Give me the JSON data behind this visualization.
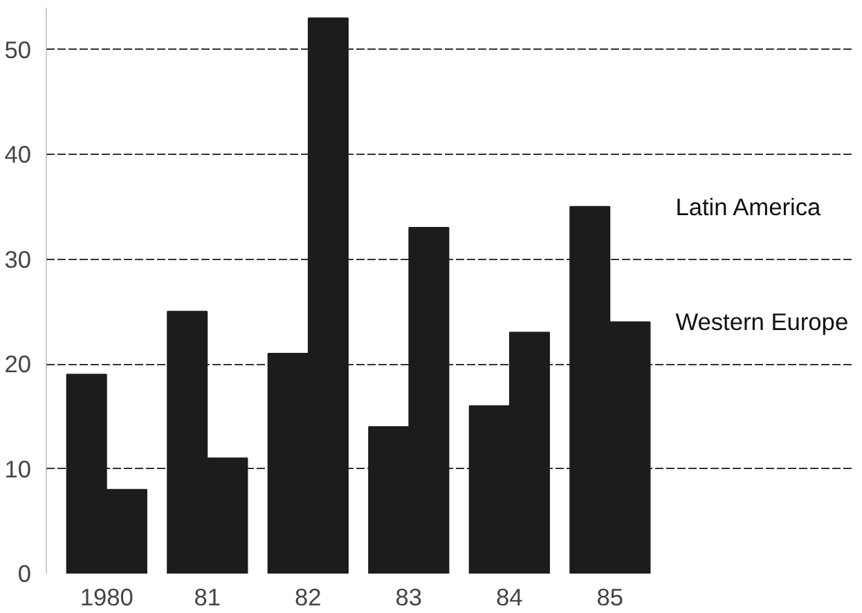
{
  "chart_data": {
    "type": "bar",
    "categories": [
      "1980",
      "81",
      "82",
      "83",
      "84",
      "85"
    ],
    "series": [
      {
        "name": "Latin America",
        "color": "#1c1c1c",
        "values": [
          19,
          25,
          21,
          14,
          16,
          35
        ]
      },
      {
        "name": "Western Europe",
        "color": "#1c1c1c",
        "values": [
          8,
          11,
          53,
          33,
          23,
          24
        ]
      }
    ],
    "ylim": [
      0,
      54
    ],
    "yticks": [
      0,
      10,
      20,
      30,
      40,
      50
    ],
    "grid": "y",
    "legend": false
  }
}
